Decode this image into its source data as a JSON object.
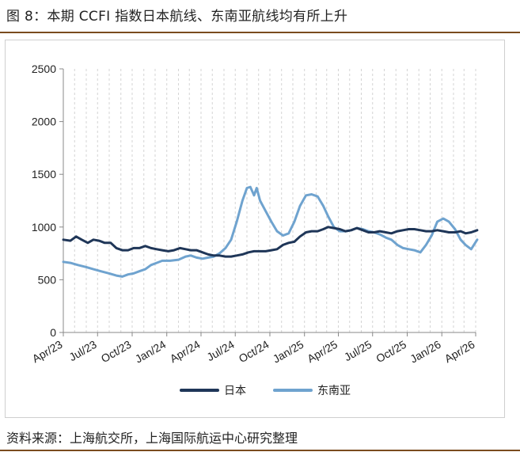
{
  "figure": {
    "title": "图 8：本期 CCFI 指数日本航线、东南亚航线均有所上升",
    "source": "资料来源：上海航交所，上海国际航运中心研究整理"
  },
  "chart_data": {
    "type": "line",
    "title": "",
    "xlabel": "",
    "ylabel": "",
    "ylim": [
      0,
      2500
    ],
    "yticks": [
      0,
      500,
      1000,
      1500,
      2000,
      2500
    ],
    "xlim": [
      "2023-04",
      "2026-04"
    ],
    "xticks": [
      "Apr/23",
      "Jul/23",
      "Oct/23",
      "Jan/24",
      "Apr/24",
      "Jul/24",
      "Oct/24",
      "Jan/25",
      "Apr/25",
      "Jul/25",
      "Oct/25",
      "Jan/26",
      "Apr/26"
    ],
    "grid": "vertical-dashed",
    "legend": "bottom",
    "series": [
      {
        "name": "日本",
        "color": "#1f3658",
        "points": [
          [
            "2023-04-01",
            880
          ],
          [
            "2023-04-20",
            870
          ],
          [
            "2023-05-05",
            910
          ],
          [
            "2023-05-20",
            880
          ],
          [
            "2023-06-05",
            850
          ],
          [
            "2023-06-20",
            880
          ],
          [
            "2023-07-05",
            870
          ],
          [
            "2023-07-20",
            850
          ],
          [
            "2023-08-05",
            850
          ],
          [
            "2023-08-20",
            800
          ],
          [
            "2023-09-05",
            780
          ],
          [
            "2023-09-20",
            780
          ],
          [
            "2023-10-05",
            800
          ],
          [
            "2023-10-20",
            800
          ],
          [
            "2023-11-05",
            820
          ],
          [
            "2023-11-20",
            800
          ],
          [
            "2023-12-05",
            790
          ],
          [
            "2023-12-20",
            780
          ],
          [
            "2024-01-05",
            770
          ],
          [
            "2024-01-20",
            780
          ],
          [
            "2024-02-05",
            800
          ],
          [
            "2024-02-20",
            790
          ],
          [
            "2024-03-05",
            780
          ],
          [
            "2024-03-20",
            780
          ],
          [
            "2024-04-05",
            760
          ],
          [
            "2024-04-20",
            740
          ],
          [
            "2024-05-05",
            730
          ],
          [
            "2024-05-20",
            730
          ],
          [
            "2024-06-05",
            720
          ],
          [
            "2024-06-20",
            720
          ],
          [
            "2024-07-05",
            730
          ],
          [
            "2024-07-20",
            740
          ],
          [
            "2024-08-05",
            760
          ],
          [
            "2024-08-20",
            770
          ],
          [
            "2024-09-05",
            770
          ],
          [
            "2024-09-20",
            770
          ],
          [
            "2024-10-05",
            780
          ],
          [
            "2024-10-20",
            790
          ],
          [
            "2024-11-05",
            830
          ],
          [
            "2024-11-20",
            850
          ],
          [
            "2024-12-05",
            860
          ],
          [
            "2024-12-20",
            910
          ],
          [
            "2025-01-05",
            950
          ],
          [
            "2025-01-20",
            960
          ],
          [
            "2025-02-05",
            960
          ],
          [
            "2025-02-20",
            980
          ],
          [
            "2025-03-05",
            1000
          ],
          [
            "2025-03-20",
            990
          ],
          [
            "2025-04-05",
            980
          ],
          [
            "2025-04-20",
            960
          ],
          [
            "2025-05-05",
            970
          ],
          [
            "2025-05-20",
            990
          ],
          [
            "2025-06-05",
            970
          ],
          [
            "2025-06-20",
            950
          ],
          [
            "2025-07-05",
            950
          ],
          [
            "2025-07-20",
            960
          ],
          [
            "2025-08-05",
            950
          ],
          [
            "2025-08-20",
            940
          ],
          [
            "2025-09-05",
            960
          ],
          [
            "2025-09-20",
            970
          ],
          [
            "2025-10-05",
            980
          ],
          [
            "2025-10-20",
            980
          ],
          [
            "2025-11-05",
            970
          ],
          [
            "2025-11-20",
            960
          ],
          [
            "2025-12-05",
            960
          ],
          [
            "2025-12-20",
            970
          ],
          [
            "2026-01-05",
            960
          ],
          [
            "2026-01-20",
            950
          ],
          [
            "2026-02-05",
            950
          ],
          [
            "2026-02-20",
            960
          ],
          [
            "2026-03-05",
            940
          ],
          [
            "2026-03-20",
            950
          ],
          [
            "2026-04-05",
            970
          ]
        ]
      },
      {
        "name": "东南亚",
        "color": "#6fa3cf",
        "points": [
          [
            "2023-04-01",
            670
          ],
          [
            "2023-04-20",
            660
          ],
          [
            "2023-05-10",
            640
          ],
          [
            "2023-06-01",
            620
          ],
          [
            "2023-06-20",
            600
          ],
          [
            "2023-07-10",
            580
          ],
          [
            "2023-08-01",
            560
          ],
          [
            "2023-08-20",
            540
          ],
          [
            "2023-09-05",
            530
          ],
          [
            "2023-09-20",
            550
          ],
          [
            "2023-10-05",
            560
          ],
          [
            "2023-10-20",
            580
          ],
          [
            "2023-11-05",
            600
          ],
          [
            "2023-11-20",
            640
          ],
          [
            "2023-12-05",
            660
          ],
          [
            "2023-12-20",
            680
          ],
          [
            "2024-01-10",
            680
          ],
          [
            "2024-02-01",
            690
          ],
          [
            "2024-02-20",
            720
          ],
          [
            "2024-03-05",
            730
          ],
          [
            "2024-03-20",
            710
          ],
          [
            "2024-04-05",
            700
          ],
          [
            "2024-04-20",
            710
          ],
          [
            "2024-05-05",
            720
          ],
          [
            "2024-05-20",
            750
          ],
          [
            "2024-06-05",
            800
          ],
          [
            "2024-06-20",
            880
          ],
          [
            "2024-07-05",
            1050
          ],
          [
            "2024-07-20",
            1250
          ],
          [
            "2024-08-01",
            1370
          ],
          [
            "2024-08-10",
            1380
          ],
          [
            "2024-08-20",
            1300
          ],
          [
            "2024-08-27",
            1370
          ],
          [
            "2024-09-05",
            1250
          ],
          [
            "2024-09-20",
            1150
          ],
          [
            "2024-10-05",
            1050
          ],
          [
            "2024-10-20",
            960
          ],
          [
            "2024-11-05",
            920
          ],
          [
            "2024-11-20",
            940
          ],
          [
            "2024-12-05",
            1050
          ],
          [
            "2024-12-20",
            1200
          ],
          [
            "2025-01-05",
            1300
          ],
          [
            "2025-01-20",
            1310
          ],
          [
            "2025-02-05",
            1290
          ],
          [
            "2025-02-20",
            1200
          ],
          [
            "2025-03-05",
            1100
          ],
          [
            "2025-03-20",
            1000
          ],
          [
            "2025-04-05",
            960
          ],
          [
            "2025-04-20",
            960
          ],
          [
            "2025-05-05",
            970
          ],
          [
            "2025-05-20",
            990
          ],
          [
            "2025-06-05",
            980
          ],
          [
            "2025-06-20",
            960
          ],
          [
            "2025-07-05",
            950
          ],
          [
            "2025-07-20",
            930
          ],
          [
            "2025-08-05",
            900
          ],
          [
            "2025-08-20",
            880
          ],
          [
            "2025-09-05",
            830
          ],
          [
            "2025-09-20",
            800
          ],
          [
            "2025-10-05",
            790
          ],
          [
            "2025-10-20",
            780
          ],
          [
            "2025-11-05",
            760
          ],
          [
            "2025-11-20",
            830
          ],
          [
            "2025-12-05",
            920
          ],
          [
            "2025-12-20",
            1050
          ],
          [
            "2026-01-05",
            1080
          ],
          [
            "2026-01-20",
            1050
          ],
          [
            "2026-02-05",
            980
          ],
          [
            "2026-02-20",
            880
          ],
          [
            "2026-03-05",
            830
          ],
          [
            "2026-03-20",
            790
          ],
          [
            "2026-04-05",
            880
          ]
        ]
      }
    ]
  }
}
